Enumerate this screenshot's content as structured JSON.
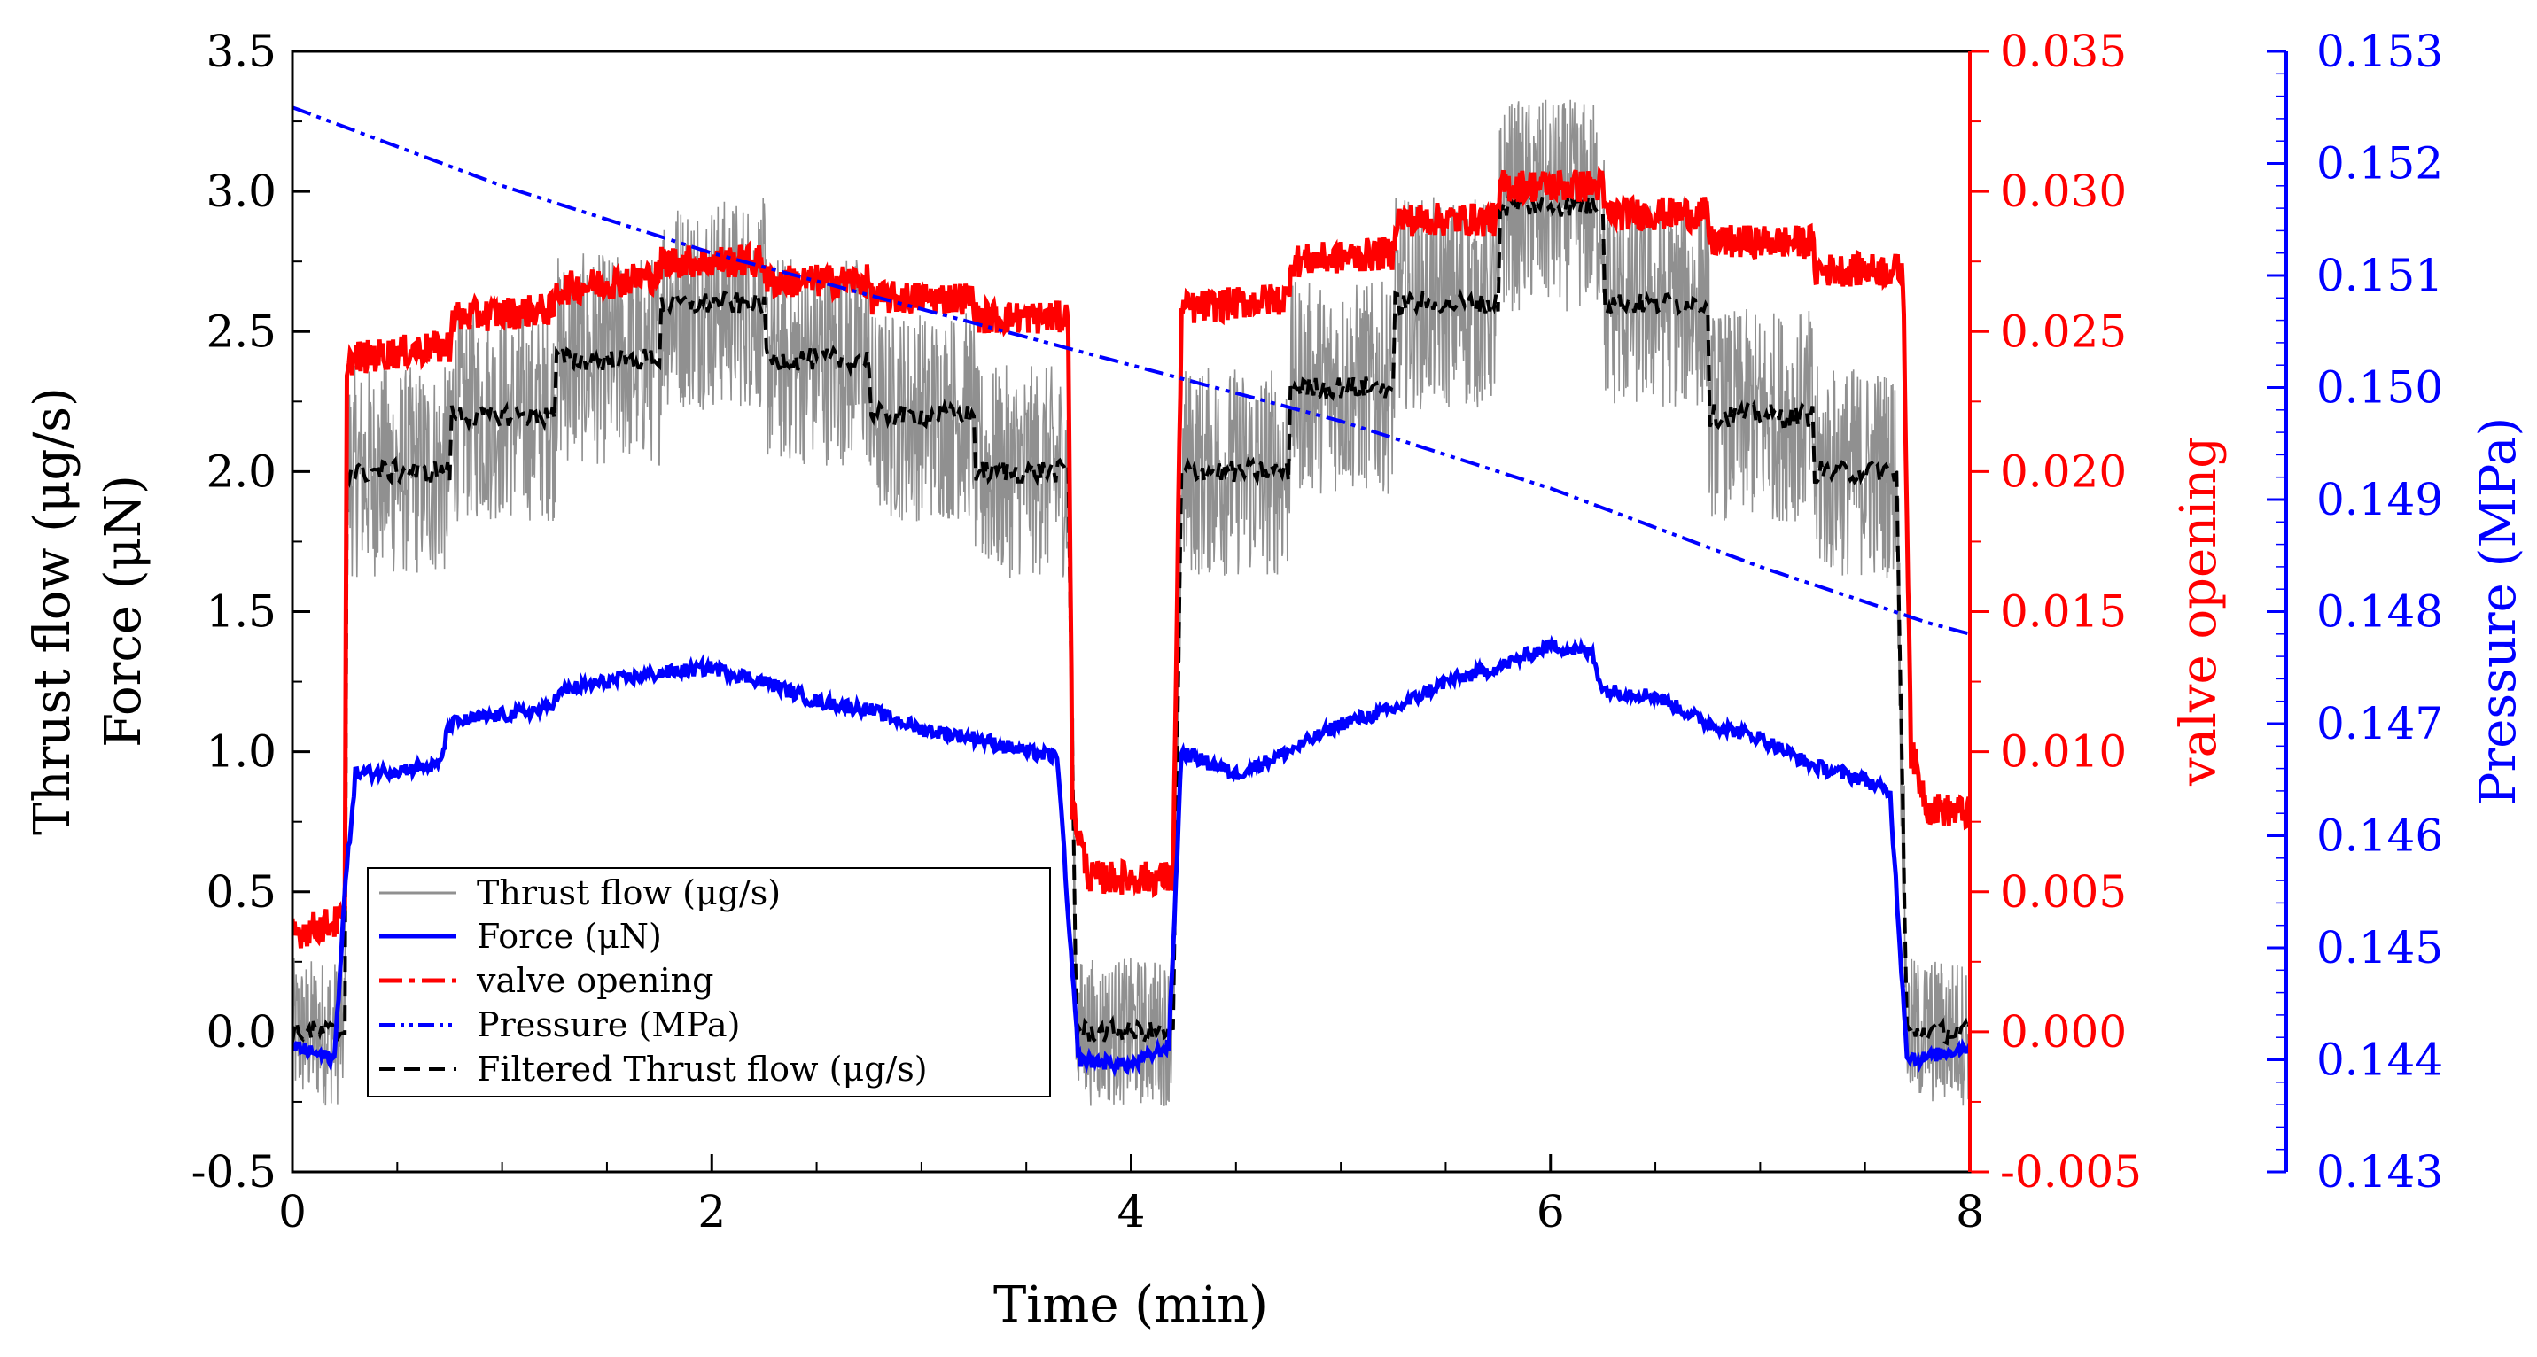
{
  "chart_data": {
    "type": "line",
    "title": "",
    "xlabel": "Time (min)",
    "ylabel_lines": [
      "Thrust flow (μg/s)",
      "Force (μN)"
    ],
    "y2label": "valve opening",
    "y3label": "Pressure (MPa)",
    "xlim": [
      0,
      8
    ],
    "ylim": [
      -0.5,
      3.5
    ],
    "y2lim": [
      -0.005,
      0.035
    ],
    "y3lim": [
      0.143,
      0.153
    ],
    "x_ticks": [
      "0",
      "2",
      "4",
      "6",
      "8"
    ],
    "y_ticks": [
      "-0.5",
      "0.0",
      "0.5",
      "1.0",
      "1.5",
      "2.0",
      "2.5",
      "3.0",
      "3.5"
    ],
    "y2_ticks": [
      "-0.005",
      "0.000",
      "0.005",
      "0.010",
      "0.015",
      "0.020",
      "0.025",
      "0.030",
      "0.035"
    ],
    "y3_ticks": [
      "0.143",
      "0.144",
      "0.145",
      "0.146",
      "0.147",
      "0.148",
      "0.149",
      "0.150",
      "0.151",
      "0.152",
      "0.153"
    ],
    "legend_position": "bottom-left",
    "colors": {
      "thrust": "#909090",
      "force": "#0000ff",
      "valve": "#ff0000",
      "pressure": "#0000ff",
      "filtered": "#000000",
      "left_axis": "#000000",
      "right_axis_valve": "#ff0000",
      "right_axis_pressure": "#0000ff"
    },
    "series": [
      {
        "name": "Thrust flow (μg/s)",
        "axis": "left",
        "style": "solid-noisy",
        "noise_amplitude": 0.38,
        "x": [
          0,
          0.25,
          0.26,
          0.75,
          0.76,
          1.25,
          1.26,
          1.75,
          1.76,
          2.25,
          2.26,
          2.75,
          2.76,
          3.25,
          3.26,
          3.7,
          3.74,
          4.2,
          4.24,
          4.75,
          4.76,
          5.25,
          5.26,
          5.75,
          5.76,
          6.25,
          6.26,
          6.75,
          6.76,
          7.25,
          7.26,
          7.65,
          7.7,
          8.0
        ],
        "y": [
          0.0,
          0.0,
          2.0,
          2.0,
          2.2,
          2.2,
          2.4,
          2.4,
          2.6,
          2.6,
          2.4,
          2.4,
          2.2,
          2.2,
          2.0,
          2.0,
          0.0,
          0.0,
          2.0,
          2.0,
          2.3,
          2.3,
          2.6,
          2.6,
          2.95,
          2.95,
          2.6,
          2.6,
          2.2,
          2.2,
          2.0,
          2.0,
          0.0,
          0.0
        ]
      },
      {
        "name": "Force (μN)",
        "axis": "left",
        "style": "solid",
        "x": [
          0,
          0.2,
          0.25,
          0.3,
          0.7,
          0.75,
          0.9,
          1.2,
          1.3,
          1.5,
          1.75,
          2.0,
          2.25,
          2.5,
          2.75,
          3.0,
          3.25,
          3.5,
          3.65,
          3.7,
          3.75,
          4.0,
          4.18,
          4.24,
          4.5,
          4.75,
          5.0,
          5.25,
          5.5,
          5.75,
          6.0,
          6.2,
          6.25,
          6.5,
          6.75,
          7.0,
          7.25,
          7.5,
          7.62,
          7.7,
          7.75,
          8.0
        ],
        "y": [
          -0.05,
          -0.1,
          0.5,
          0.92,
          0.95,
          1.1,
          1.12,
          1.15,
          1.22,
          1.25,
          1.28,
          1.3,
          1.25,
          1.18,
          1.15,
          1.08,
          1.05,
          1.0,
          0.98,
          0.4,
          -0.1,
          -0.12,
          -0.05,
          1.0,
          0.92,
          1.0,
          1.1,
          1.15,
          1.25,
          1.3,
          1.38,
          1.35,
          1.22,
          1.2,
          1.1,
          1.05,
          0.95,
          0.9,
          0.85,
          -0.08,
          -0.1,
          -0.05
        ]
      },
      {
        "name": "valve opening",
        "axis": "right",
        "style": "dashdot",
        "noise_amplitude": 0.0006,
        "x": [
          0,
          0.25,
          0.26,
          0.75,
          0.76,
          1.25,
          1.26,
          1.75,
          1.76,
          2.25,
          2.26,
          2.75,
          2.76,
          3.25,
          3.26,
          3.7,
          3.72,
          3.8,
          4.2,
          4.24,
          4.75,
          4.76,
          5.25,
          5.26,
          5.75,
          5.76,
          6.25,
          6.26,
          6.75,
          6.76,
          7.25,
          7.26,
          7.68,
          7.72,
          7.8,
          8.0
        ],
        "y": [
          0.0035,
          0.004,
          0.024,
          0.0245,
          0.0255,
          0.0258,
          0.0265,
          0.027,
          0.0275,
          0.0275,
          0.0268,
          0.0268,
          0.0262,
          0.0262,
          0.0255,
          0.0255,
          0.008,
          0.0055,
          0.0055,
          0.0258,
          0.0262,
          0.0275,
          0.0278,
          0.029,
          0.029,
          0.0302,
          0.0302,
          0.0292,
          0.0292,
          0.0282,
          0.0282,
          0.0272,
          0.0272,
          0.01,
          0.008,
          0.0078
        ]
      },
      {
        "name": "Pressure (MPa)",
        "axis": "right-outer",
        "style": "dashdotdot",
        "x": [
          0,
          1.0,
          2.0,
          3.0,
          4.0,
          5.0,
          6.0,
          7.0,
          7.8,
          8.0
        ],
        "y": [
          0.1525,
          0.1518,
          0.1512,
          0.1507,
          0.1502,
          0.1497,
          0.1491,
          0.1484,
          0.1479,
          0.1478
        ]
      },
      {
        "name": "Filtered Thrust flow (μg/s)",
        "axis": "left",
        "style": "dashed",
        "x": [
          0,
          0.25,
          0.26,
          0.75,
          0.76,
          1.25,
          1.26,
          1.75,
          1.76,
          2.25,
          2.26,
          2.75,
          2.76,
          3.25,
          3.26,
          3.7,
          3.74,
          4.2,
          4.24,
          4.75,
          4.76,
          5.25,
          5.26,
          5.75,
          5.76,
          6.25,
          6.26,
          6.75,
          6.76,
          7.25,
          7.26,
          7.65,
          7.7,
          8.0
        ],
        "y": [
          0.0,
          0.0,
          2.0,
          2.0,
          2.2,
          2.2,
          2.4,
          2.4,
          2.6,
          2.6,
          2.4,
          2.4,
          2.2,
          2.2,
          2.0,
          2.0,
          0.0,
          0.0,
          2.0,
          2.0,
          2.3,
          2.3,
          2.6,
          2.6,
          2.95,
          2.95,
          2.6,
          2.6,
          2.2,
          2.2,
          2.0,
          2.0,
          0.0,
          0.0
        ]
      }
    ]
  }
}
